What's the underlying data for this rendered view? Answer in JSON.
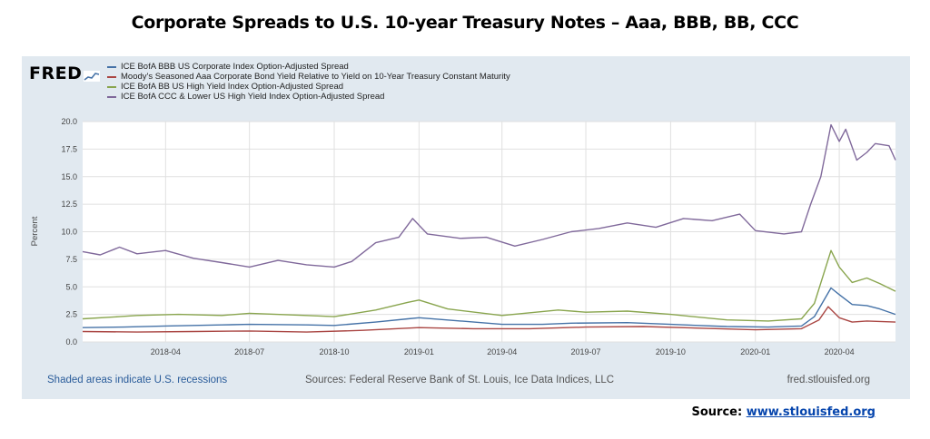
{
  "page": {
    "title": "Corporate Spreads to U.S. 10-year Treasury Notes – Aaa, BBB, BB, CCC",
    "source_label": "Source:",
    "source_link": "www.stlouisfed.org"
  },
  "fred": {
    "logo_text": "FRED",
    "recession_note": "Shaded areas indicate U.S. recessions",
    "sources_note": "Sources: Federal Reserve Bank of St. Louis, Ice Data Indices, LLC",
    "site": "fred.stlouisfed.org"
  },
  "chart_data": {
    "type": "line",
    "ylabel": "Percent",
    "xlabel": "",
    "ylim": [
      0,
      20
    ],
    "yticks": [
      "0.0",
      "2.5",
      "5.0",
      "7.5",
      "10.0",
      "12.5",
      "15.0",
      "17.5",
      "20.0"
    ],
    "xlim": [
      "2018-01-01",
      "2020-06-01"
    ],
    "xticks": [
      "2018-04",
      "2018-07",
      "2018-10",
      "2019-01",
      "2019-04",
      "2019-07",
      "2019-10",
      "2020-01",
      "2020-04"
    ],
    "grid": true,
    "legend_position": "top-left",
    "series": [
      {
        "name": "ICE BofA BBB US Corporate Index Option-Adjusted Spread",
        "color": "#4572a7",
        "points": [
          [
            "2018-01-01",
            1.3
          ],
          [
            "2018-02-15",
            1.35
          ],
          [
            "2018-04-01",
            1.45
          ],
          [
            "2018-06-01",
            1.55
          ],
          [
            "2018-07-01",
            1.6
          ],
          [
            "2018-09-01",
            1.55
          ],
          [
            "2018-10-01",
            1.5
          ],
          [
            "2018-11-15",
            1.8
          ],
          [
            "2018-12-20",
            2.1
          ],
          [
            "2019-01-01",
            2.2
          ],
          [
            "2019-02-15",
            1.9
          ],
          [
            "2019-04-01",
            1.6
          ],
          [
            "2019-05-15",
            1.6
          ],
          [
            "2019-06-15",
            1.7
          ],
          [
            "2019-08-15",
            1.75
          ],
          [
            "2019-10-01",
            1.6
          ],
          [
            "2019-12-01",
            1.4
          ],
          [
            "2020-01-15",
            1.35
          ],
          [
            "2020-02-20",
            1.45
          ],
          [
            "2020-03-05",
            2.3
          ],
          [
            "2020-03-23",
            4.9
          ],
          [
            "2020-04-01",
            4.3
          ],
          [
            "2020-04-15",
            3.4
          ],
          [
            "2020-05-01",
            3.3
          ],
          [
            "2020-05-15",
            3.0
          ],
          [
            "2020-06-01",
            2.5
          ]
        ]
      },
      {
        "name": "Moody's Seasoned Aaa Corporate Bond Yield Relative to Yield on 10-Year Treasury Constant Maturity",
        "color": "#aa4643",
        "points": [
          [
            "2018-01-01",
            0.95
          ],
          [
            "2018-03-01",
            0.9
          ],
          [
            "2018-05-01",
            0.95
          ],
          [
            "2018-07-01",
            1.0
          ],
          [
            "2018-09-01",
            0.9
          ],
          [
            "2018-11-01",
            1.05
          ],
          [
            "2019-01-01",
            1.3
          ],
          [
            "2019-03-01",
            1.2
          ],
          [
            "2019-05-01",
            1.2
          ],
          [
            "2019-07-01",
            1.35
          ],
          [
            "2019-09-01",
            1.4
          ],
          [
            "2019-11-01",
            1.25
          ],
          [
            "2020-01-01",
            1.1
          ],
          [
            "2020-02-20",
            1.2
          ],
          [
            "2020-03-10",
            2.0
          ],
          [
            "2020-03-20",
            3.2
          ],
          [
            "2020-04-01",
            2.2
          ],
          [
            "2020-04-15",
            1.8
          ],
          [
            "2020-05-01",
            1.9
          ],
          [
            "2020-06-01",
            1.8
          ]
        ]
      },
      {
        "name": "ICE BofA BB US High Yield Index Option-Adjusted Spread",
        "color": "#89a54e",
        "points": [
          [
            "2018-01-01",
            2.1
          ],
          [
            "2018-02-10",
            2.3
          ],
          [
            "2018-03-01",
            2.4
          ],
          [
            "2018-04-15",
            2.5
          ],
          [
            "2018-06-01",
            2.4
          ],
          [
            "2018-07-01",
            2.6
          ],
          [
            "2018-09-01",
            2.4
          ],
          [
            "2018-10-01",
            2.3
          ],
          [
            "2018-11-15",
            2.9
          ],
          [
            "2018-12-20",
            3.6
          ],
          [
            "2019-01-01",
            3.8
          ],
          [
            "2019-02-01",
            3.0
          ],
          [
            "2019-04-01",
            2.4
          ],
          [
            "2019-06-01",
            2.9
          ],
          [
            "2019-07-01",
            2.7
          ],
          [
            "2019-08-15",
            2.8
          ],
          [
            "2019-10-01",
            2.5
          ],
          [
            "2019-12-01",
            2.0
          ],
          [
            "2020-01-15",
            1.9
          ],
          [
            "2020-02-20",
            2.1
          ],
          [
            "2020-03-05",
            3.5
          ],
          [
            "2020-03-23",
            8.3
          ],
          [
            "2020-04-01",
            6.8
          ],
          [
            "2020-04-15",
            5.4
          ],
          [
            "2020-05-01",
            5.8
          ],
          [
            "2020-05-15",
            5.3
          ],
          [
            "2020-06-01",
            4.6
          ]
        ]
      },
      {
        "name": "ICE BofA CCC & Lower US High Yield Index Option-Adjusted Spread",
        "color": "#80699b",
        "points": [
          [
            "2018-01-01",
            8.2
          ],
          [
            "2018-01-20",
            7.9
          ],
          [
            "2018-02-10",
            8.6
          ],
          [
            "2018-03-01",
            8.0
          ],
          [
            "2018-04-01",
            8.3
          ],
          [
            "2018-05-01",
            7.6
          ],
          [
            "2018-06-01",
            7.2
          ],
          [
            "2018-07-01",
            6.8
          ],
          [
            "2018-08-01",
            7.4
          ],
          [
            "2018-09-01",
            7.0
          ],
          [
            "2018-10-01",
            6.8
          ],
          [
            "2018-10-20",
            7.3
          ],
          [
            "2018-11-15",
            9.0
          ],
          [
            "2018-12-10",
            9.5
          ],
          [
            "2018-12-25",
            11.2
          ],
          [
            "2019-01-10",
            9.8
          ],
          [
            "2019-02-15",
            9.4
          ],
          [
            "2019-03-15",
            9.5
          ],
          [
            "2019-04-15",
            8.7
          ],
          [
            "2019-05-15",
            9.3
          ],
          [
            "2019-06-15",
            10.0
          ],
          [
            "2019-07-15",
            10.3
          ],
          [
            "2019-08-15",
            10.8
          ],
          [
            "2019-09-15",
            10.4
          ],
          [
            "2019-10-15",
            11.2
          ],
          [
            "2019-11-15",
            11.0
          ],
          [
            "2019-12-15",
            11.6
          ],
          [
            "2020-01-01",
            10.1
          ],
          [
            "2020-02-01",
            9.8
          ],
          [
            "2020-02-20",
            10.0
          ],
          [
            "2020-03-01",
            12.5
          ],
          [
            "2020-03-12",
            15.0
          ],
          [
            "2020-03-23",
            19.7
          ],
          [
            "2020-04-01",
            18.2
          ],
          [
            "2020-04-08",
            19.3
          ],
          [
            "2020-04-20",
            16.5
          ],
          [
            "2020-05-01",
            17.2
          ],
          [
            "2020-05-10",
            18.0
          ],
          [
            "2020-05-25",
            17.8
          ],
          [
            "2020-06-01",
            16.5
          ]
        ]
      }
    ]
  }
}
